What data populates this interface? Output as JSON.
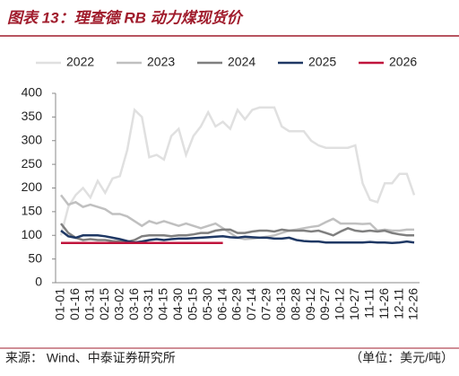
{
  "chart_data": {
    "type": "line",
    "title": "图表 13：理查德 RB 动力煤现货价",
    "categories": [
      "01-01",
      null,
      "01-16",
      null,
      "01-31",
      null,
      "02-15",
      null,
      "03-02",
      null,
      "03-16",
      null,
      "03-31",
      null,
      "04-15",
      null,
      "04-30",
      null,
      "05-15",
      null,
      "05-30",
      null,
      "06-14",
      null,
      "06-29",
      null,
      "07-14",
      null,
      "07-29",
      null,
      "08-13",
      null,
      "08-28",
      null,
      "09-12",
      null,
      "09-27",
      null,
      "10-12",
      null,
      "10-27",
      null,
      "11-11",
      null,
      "11-26",
      null,
      "12-11",
      null,
      "12-26"
    ],
    "series": [
      {
        "name": "2022",
        "color": "#e0e0e0",
        "values": [
          100,
          160,
          185,
          200,
          180,
          215,
          190,
          220,
          225,
          280,
          365,
          350,
          265,
          270,
          260,
          310,
          325,
          270,
          310,
          330,
          360,
          330,
          340,
          325,
          365,
          345,
          365,
          370,
          370,
          370,
          330,
          320,
          320,
          320,
          300,
          290,
          285,
          285,
          285,
          285,
          290,
          210,
          175,
          170,
          210,
          210,
          230,
          230,
          185
        ]
      },
      {
        "name": "2023",
        "color": "#c0c0c0",
        "values": [
          185,
          165,
          170,
          160,
          165,
          160,
          155,
          145,
          145,
          140,
          130,
          120,
          130,
          125,
          130,
          125,
          120,
          125,
          120,
          115,
          120,
          125,
          115,
          105,
          95,
          92,
          93,
          95,
          97,
          100,
          105,
          110,
          112,
          115,
          118,
          120,
          128,
          135,
          125,
          125,
          125,
          124,
          125,
          110,
          112,
          110,
          110,
          112,
          112
        ]
      },
      {
        "name": "2024",
        "color": "#7f7f7f",
        "values": [
          125,
          105,
          95,
          90,
          92,
          90,
          90,
          88,
          87,
          86,
          90,
          98,
          100,
          100,
          100,
          98,
          100,
          100,
          102,
          105,
          105,
          110,
          112,
          112,
          105,
          105,
          108,
          110,
          110,
          108,
          112,
          110,
          110,
          110,
          108,
          110,
          105,
          100,
          108,
          115,
          110,
          108,
          110,
          108,
          110,
          105,
          102,
          100,
          100
        ]
      },
      {
        "name": "2025",
        "color": "#1f3864",
        "values": [
          110,
          98,
          95,
          100,
          100,
          100,
          98,
          95,
          92,
          88,
          85,
          87,
          90,
          92,
          90,
          92,
          93,
          93,
          94,
          95,
          96,
          97,
          98,
          96,
          95,
          97,
          96,
          95,
          95,
          93,
          93,
          95,
          90,
          88,
          87,
          87,
          85,
          85,
          85,
          85,
          85,
          85,
          86,
          85,
          85,
          84,
          85,
          87,
          85
        ]
      },
      {
        "name": "2026",
        "color": "#c0143c",
        "values": [
          84,
          84,
          84,
          84,
          84,
          84,
          84,
          84,
          84,
          84,
          84,
          84,
          84,
          84,
          84,
          84,
          84,
          84,
          84,
          84,
          84,
          84,
          84,
          null,
          null,
          null,
          null,
          null,
          null,
          null,
          null,
          null,
          null,
          null,
          null,
          null,
          null,
          null,
          null,
          null,
          null,
          null,
          null,
          null,
          null,
          null,
          null,
          null,
          null
        ]
      }
    ],
    "ylim": [
      0,
      400
    ],
    "yticks": [
      0,
      50,
      100,
      150,
      200,
      250,
      300,
      350,
      400
    ],
    "grid": false
  },
  "footer": {
    "source": "来源：  Wind、中泰证券研究所",
    "unit": "（单位：美元/吨）"
  }
}
